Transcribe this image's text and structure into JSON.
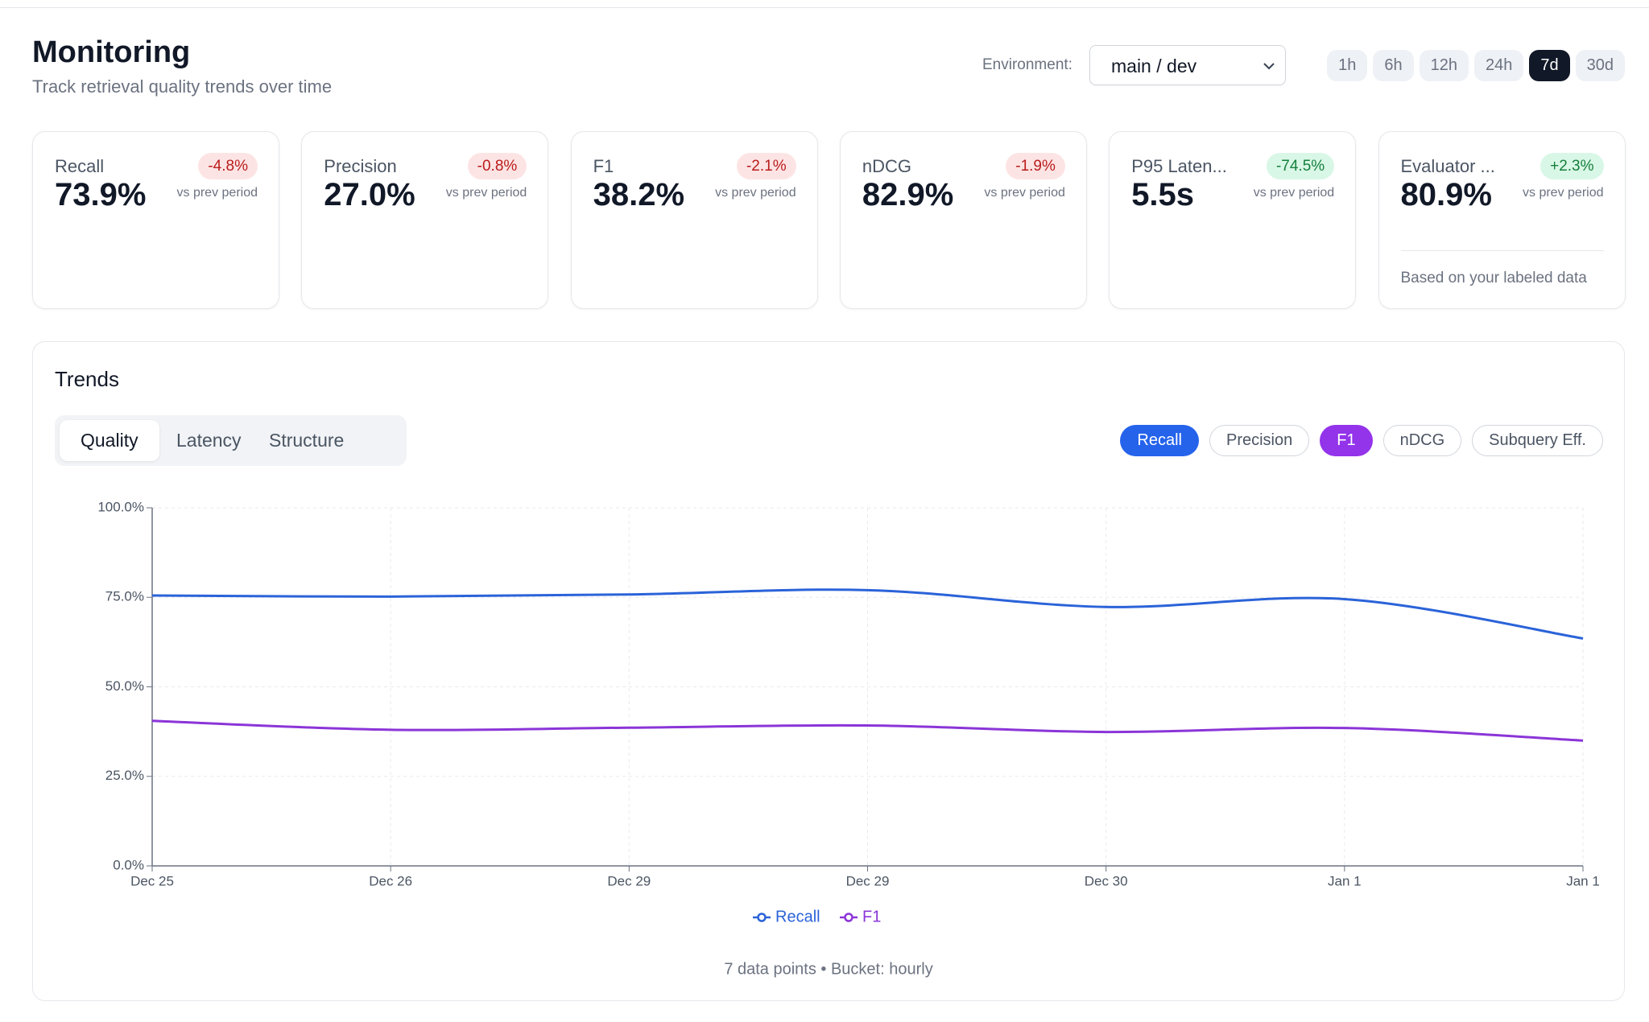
{
  "header": {
    "title": "Monitoring",
    "subtitle": "Track retrieval quality trends over time"
  },
  "controls": {
    "environment_label": "Environment:",
    "environment": "main / dev",
    "ranges": [
      "1h",
      "6h",
      "12h",
      "24h",
      "7d",
      "30d"
    ],
    "active_range": 4
  },
  "kpis": [
    {
      "label": "Recall",
      "change": "-4.8%",
      "tone": "red",
      "comparison": "vs prev period",
      "value": "73.9%"
    },
    {
      "label": "Precision",
      "change": "-0.8%",
      "tone": "red",
      "comparison": "vs prev period",
      "value": "27.0%"
    },
    {
      "label": "F1",
      "change": "-2.1%",
      "tone": "red",
      "comparison": "vs prev period",
      "value": "38.2%"
    },
    {
      "label": "nDCG",
      "change": "-1.9%",
      "tone": "red",
      "comparison": "vs prev period",
      "value": "82.9%"
    },
    {
      "label": "P95 Laten...",
      "change": "-74.5%",
      "tone": "green",
      "comparison": "vs prev period",
      "value": "5.5s"
    },
    {
      "label": "Evaluator ...",
      "change": "+2.3%",
      "tone": "green",
      "comparison": "vs prev period",
      "value": "80.9%",
      "note": "Based on your labeled data"
    }
  ],
  "trends": {
    "title": "Trends",
    "tabs": [
      "Quality",
      "Latency",
      "Structure"
    ],
    "active_tab": 0,
    "metrics": [
      {
        "label": "Recall",
        "active": true,
        "color": "#2563eb"
      },
      {
        "label": "Precision",
        "active": false
      },
      {
        "label": "F1",
        "active": true,
        "color": "#9333ea"
      },
      {
        "label": "nDCG",
        "active": false
      },
      {
        "label": "Subquery Eff.",
        "active": false
      }
    ],
    "footer": "7 data points • Bucket: hourly"
  },
  "chart_data": {
    "type": "line",
    "categories": [
      "Dec 25",
      "Dec 26",
      "Dec 29",
      "Dec 29",
      "Dec 30",
      "Jan 1",
      "Jan 1"
    ],
    "series": [
      {
        "name": "Recall",
        "color": "#2b63d9",
        "values": [
          75.5,
          75.2,
          75.8,
          77.0,
          72.3,
          74.5,
          63.5
        ]
      },
      {
        "name": "F1",
        "color": "#8b35d8",
        "values": [
          40.5,
          38.0,
          38.6,
          39.2,
          37.4,
          38.5,
          35.0
        ]
      }
    ],
    "ylim": [
      0,
      100
    ],
    "yticks": [
      {
        "value": 0,
        "label": "0.0%"
      },
      {
        "value": 25,
        "label": "25.0%"
      },
      {
        "value": 50,
        "label": "50.0%"
      },
      {
        "value": 75,
        "label": "75.0%"
      },
      {
        "value": 100,
        "label": "100.0%"
      }
    ],
    "grid": true
  }
}
